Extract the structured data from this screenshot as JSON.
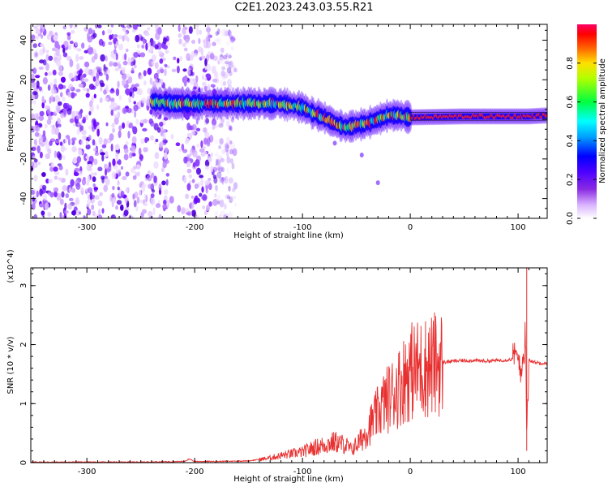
{
  "title": "C2E1.2023.243.03.55.R21",
  "chart_data": [
    {
      "type": "heatmap",
      "title": "C2E1.2023.243.03.55.R21",
      "xlabel": "Height of straight line (km)",
      "ylabel": "Frequency (Hz)",
      "xlim": [
        -352,
        127
      ],
      "ylim": [
        -50,
        48
      ],
      "x_ticks": [
        -300,
        -200,
        -100,
        0,
        100
      ],
      "y_ticks": [
        -40,
        -20,
        0,
        20,
        40
      ],
      "colorbar": {
        "label": "Normalized spectral amplitude",
        "range": [
          0,
          1
        ],
        "ticks": [
          "0.0",
          "0.2",
          "0.4",
          "0.6",
          "0.8"
        ]
      },
      "ridge": {
        "description_points_x": [
          -320,
          -240,
          -220,
          -180,
          -160,
          -140,
          -120,
          -100,
          -90,
          -80,
          -70,
          -60,
          -50,
          -40,
          -30,
          -20,
          -10,
          0,
          50,
          100,
          110,
          127
        ],
        "description_points_y": [
          7,
          9,
          8,
          8,
          8,
          8,
          8,
          6,
          3,
          1,
          -2,
          -4,
          -3,
          -2,
          0,
          2,
          2,
          1,
          1.5,
          1.5,
          1.5,
          2
        ]
      }
    },
    {
      "type": "line",
      "xlabel": "Height of straight line (km)",
      "ylabel": "SNR (10 * v/v)",
      "y_multiplier_label": "(x10^4)",
      "xlim": [
        -352,
        127
      ],
      "ylim": [
        0,
        3.3
      ],
      "x_ticks": [
        -300,
        -200,
        -100,
        0,
        100
      ],
      "y_ticks": [
        0,
        1,
        2,
        3
      ],
      "series": [
        {
          "color": "#e83030",
          "x": [
            -352,
            -300,
            -250,
            -210,
            -205,
            -200,
            -180,
            -150,
            -130,
            -120,
            -110,
            -100,
            -90,
            -80,
            -70,
            -60,
            -55,
            -50,
            -45,
            -40,
            -35,
            -30,
            -25,
            -20,
            -15,
            -10,
            -5,
            0,
            10,
            20,
            30,
            40,
            50,
            60,
            70,
            80,
            90,
            95,
            100,
            103,
            105,
            107,
            108,
            110,
            115,
            127
          ],
          "y": [
            0.01,
            0.01,
            0.01,
            0.02,
            0.06,
            0.02,
            0.02,
            0.03,
            0.08,
            0.12,
            0.15,
            0.18,
            0.25,
            0.3,
            0.35,
            0.3,
            0.22,
            0.3,
            0.4,
            0.55,
            0.7,
            0.85,
            1.0,
            1.1,
            1.2,
            1.3,
            1.45,
            1.55,
            1.6,
            1.65,
            1.7,
            1.72,
            1.73,
            1.73,
            1.72,
            1.73,
            1.74,
            1.75,
            1.78,
            1.6,
            1.8,
            2.2,
            0.3,
            1.75,
            1.7,
            1.68
          ]
        }
      ]
    }
  ]
}
